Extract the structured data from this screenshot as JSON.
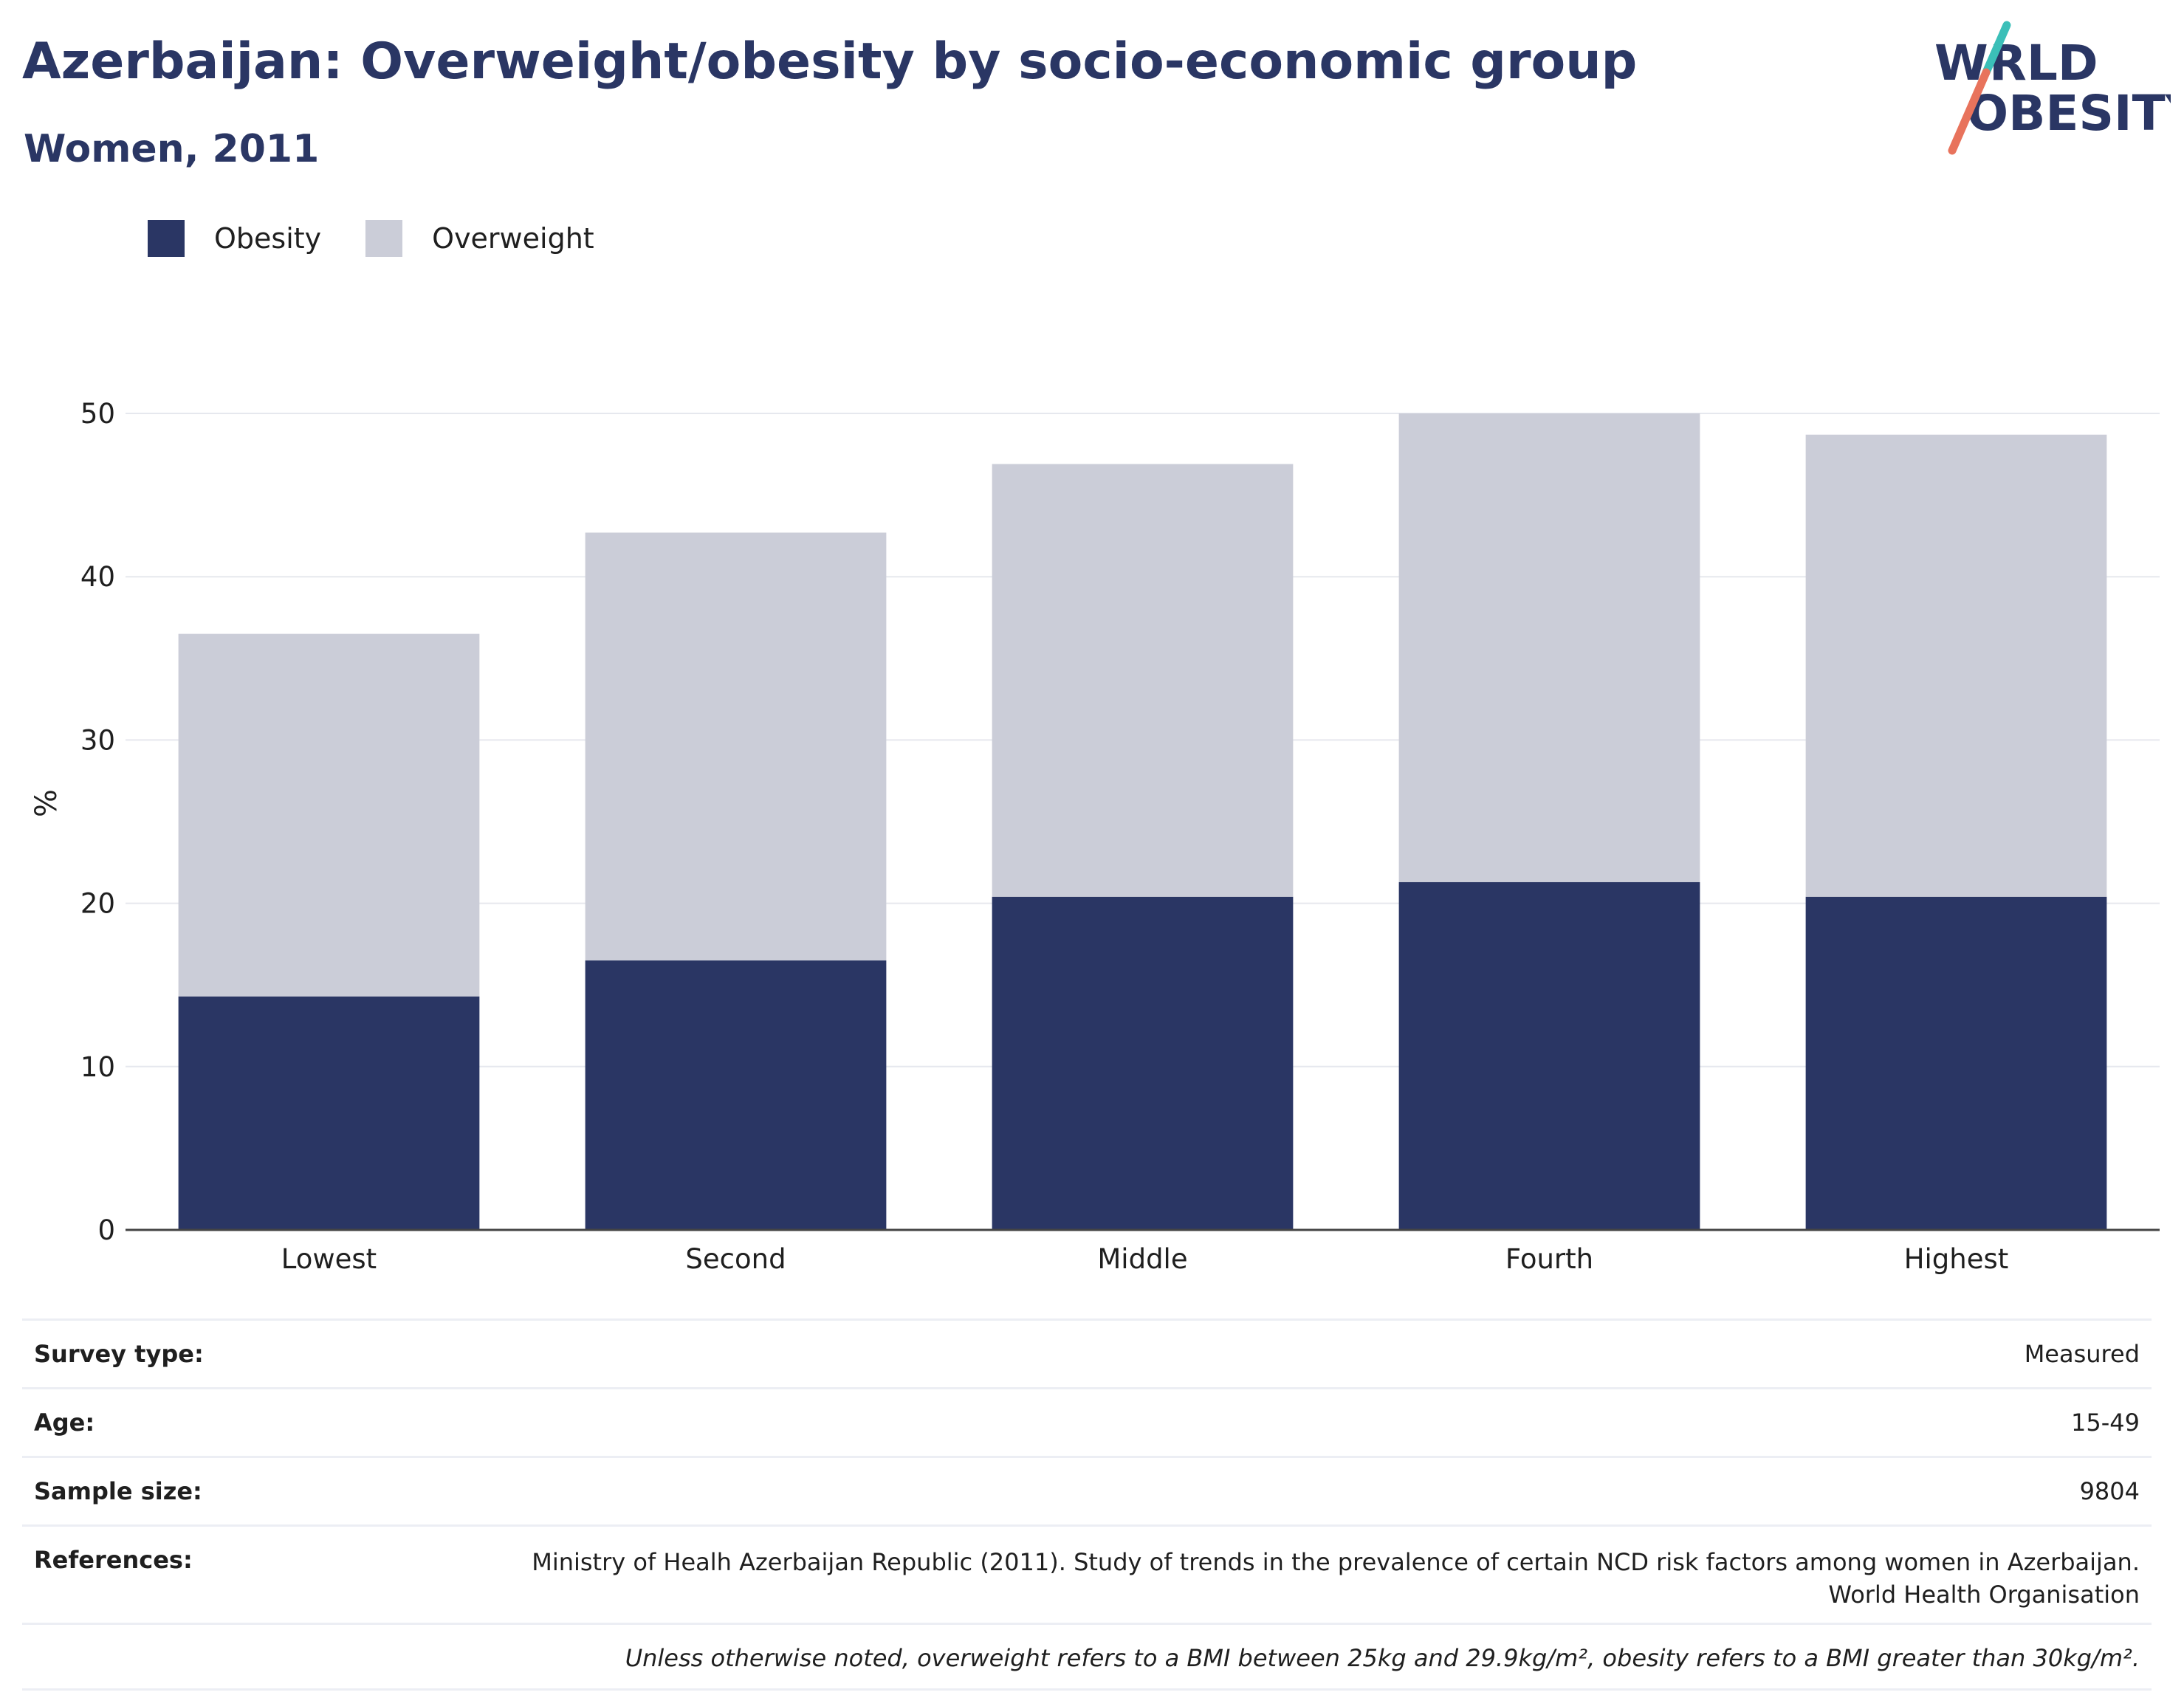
{
  "header": {
    "title": "Azerbaijan: Overweight/obesity by socio-economic group",
    "subtitle": "Women, 2011"
  },
  "logo": {
    "line1": "WORLD",
    "line2": "OBESITY",
    "accent_teal": "#3bbfb8",
    "accent_coral": "#e8735c"
  },
  "legend": [
    {
      "label": "Obesity",
      "color": "#2a3664"
    },
    {
      "label": "Overweight",
      "color": "#cbcdd8"
    }
  ],
  "chart_data": {
    "type": "bar",
    "stacked": true,
    "categories": [
      "Lowest",
      "Second",
      "Middle",
      "Fourth",
      "Highest"
    ],
    "series": [
      {
        "name": "Obesity",
        "color": "#2a3664",
        "values": [
          14.3,
          16.5,
          20.4,
          21.3,
          20.4
        ]
      },
      {
        "name": "Overweight",
        "color": "#cbcdd8",
        "values": [
          22.2,
          26.2,
          26.5,
          28.7,
          28.3
        ]
      }
    ],
    "ylabel": "%",
    "ylim": [
      0,
      50
    ],
    "yticks": [
      0,
      10,
      20,
      30,
      40,
      50
    ],
    "grid": true,
    "legend_position": "top-left"
  },
  "info": {
    "survey_type_label": "Survey type:",
    "survey_type_value": "Measured",
    "age_label": "Age:",
    "age_value": "15-49",
    "sample_label": "Sample size:",
    "sample_value": "9804",
    "references_label": "References:",
    "references_line1": "Ministry of Healh Azerbaijan Republic (2011). Study of trends in the prevalence of certain NCD risk factors among women in Azerbaijan.",
    "references_line2": "World Health Organisation",
    "note": "Unless otherwise noted, overweight refers to a BMI between 25kg and 29.9kg/m², obesity refers to a BMI greater than 30kg/m²."
  }
}
